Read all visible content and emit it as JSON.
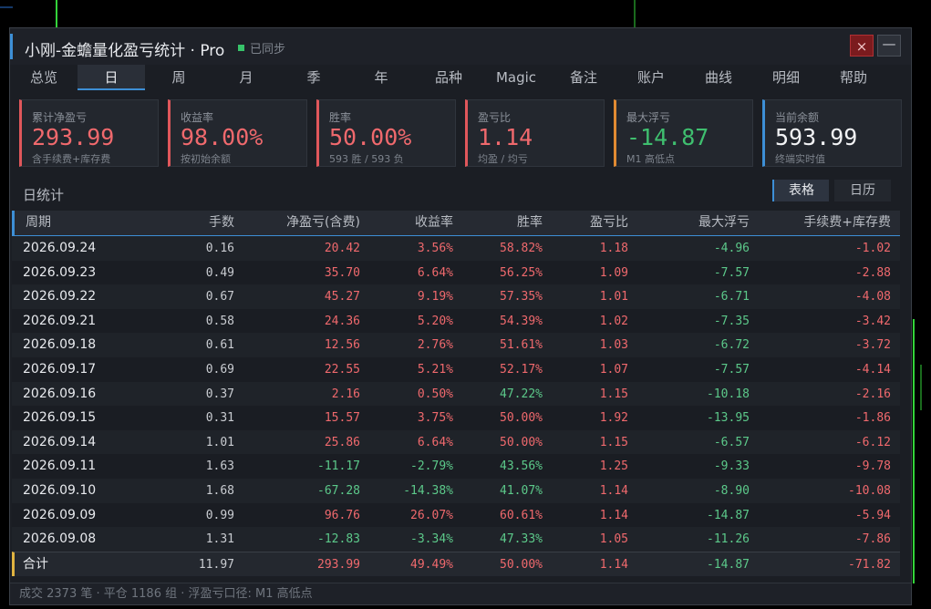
{
  "window": {
    "title": "小刚-金蟾量化盈亏统计 · Pro",
    "sync_status": "已同步",
    "close_label": "×",
    "minimize_label": "—"
  },
  "tabs": [
    "总览",
    "日",
    "周",
    "月",
    "季",
    "年",
    "品种",
    "Magic",
    "备注",
    "账户",
    "曲线",
    "明细",
    "帮助"
  ],
  "active_tab": "日",
  "cards": [
    {
      "label": "累计净盈亏",
      "value": "293.99",
      "sub": "含手续费+库存费"
    },
    {
      "label": "收益率",
      "value": "98.00%",
      "sub": "按初始余额"
    },
    {
      "label": "胜率",
      "value": "50.00%",
      "sub": "593 胜 / 593 负"
    },
    {
      "label": "盈亏比",
      "value": "1.14",
      "sub": "均盈 / 均亏"
    },
    {
      "label": "最大浮亏",
      "value": "-14.87",
      "sub": "M1 高低点"
    },
    {
      "label": "当前余额",
      "value": "593.99",
      "sub": "终端实时值"
    }
  ],
  "section_title": "日统计",
  "view_toggle": {
    "table": "表格",
    "calendar": "日历"
  },
  "table": {
    "headers": [
      "周期",
      "手数",
      "净盈亏(含费)",
      "收益率",
      "胜率",
      "盈亏比",
      "最大浮亏",
      "手续费+库存费"
    ],
    "rows": [
      [
        "2026.09.24",
        "0.16",
        "20.42",
        "3.56%",
        "58.82%",
        "1.18",
        "-4.96",
        "-1.02"
      ],
      [
        "2026.09.23",
        "0.49",
        "35.70",
        "6.64%",
        "56.25%",
        "1.09",
        "-7.57",
        "-2.88"
      ],
      [
        "2026.09.22",
        "0.67",
        "45.27",
        "9.19%",
        "57.35%",
        "1.01",
        "-6.71",
        "-4.08"
      ],
      [
        "2026.09.21",
        "0.58",
        "24.36",
        "5.20%",
        "54.39%",
        "1.02",
        "-7.35",
        "-3.42"
      ],
      [
        "2026.09.18",
        "0.61",
        "12.56",
        "2.76%",
        "51.61%",
        "1.03",
        "-6.72",
        "-3.72"
      ],
      [
        "2026.09.17",
        "0.69",
        "22.55",
        "5.21%",
        "52.17%",
        "1.07",
        "-7.57",
        "-4.14"
      ],
      [
        "2026.09.16",
        "0.37",
        "2.16",
        "0.50%",
        "47.22%",
        "1.15",
        "-10.18",
        "-2.16"
      ],
      [
        "2026.09.15",
        "0.31",
        "15.57",
        "3.75%",
        "50.00%",
        "1.92",
        "-13.95",
        "-1.86"
      ],
      [
        "2026.09.14",
        "1.01",
        "25.86",
        "6.64%",
        "50.00%",
        "1.15",
        "-6.57",
        "-6.12"
      ],
      [
        "2026.09.11",
        "1.63",
        "-11.17",
        "-2.79%",
        "43.56%",
        "1.25",
        "-9.33",
        "-9.78"
      ],
      [
        "2026.09.10",
        "1.68",
        "-67.28",
        "-14.38%",
        "41.07%",
        "1.14",
        "-8.90",
        "-10.08"
      ],
      [
        "2026.09.09",
        "0.99",
        "96.76",
        "26.07%",
        "60.61%",
        "1.14",
        "-14.87",
        "-5.94"
      ],
      [
        "2026.09.08",
        "1.31",
        "-12.83",
        "-3.34%",
        "47.33%",
        "1.05",
        "-11.26",
        "-7.86"
      ]
    ],
    "total": [
      "合计",
      "11.97",
      "293.99",
      "49.49%",
      "50.00%",
      "1.14",
      "-14.87",
      "-71.82"
    ]
  },
  "footer": "成交 2373 笔 · 平仓 1186 组 · 浮盈亏口径: M1 高低点",
  "colors": {
    "profit": "#f0696d",
    "loss": "#5cc98a",
    "accent": "#3d8fd6",
    "bg": "#1b1e24"
  }
}
